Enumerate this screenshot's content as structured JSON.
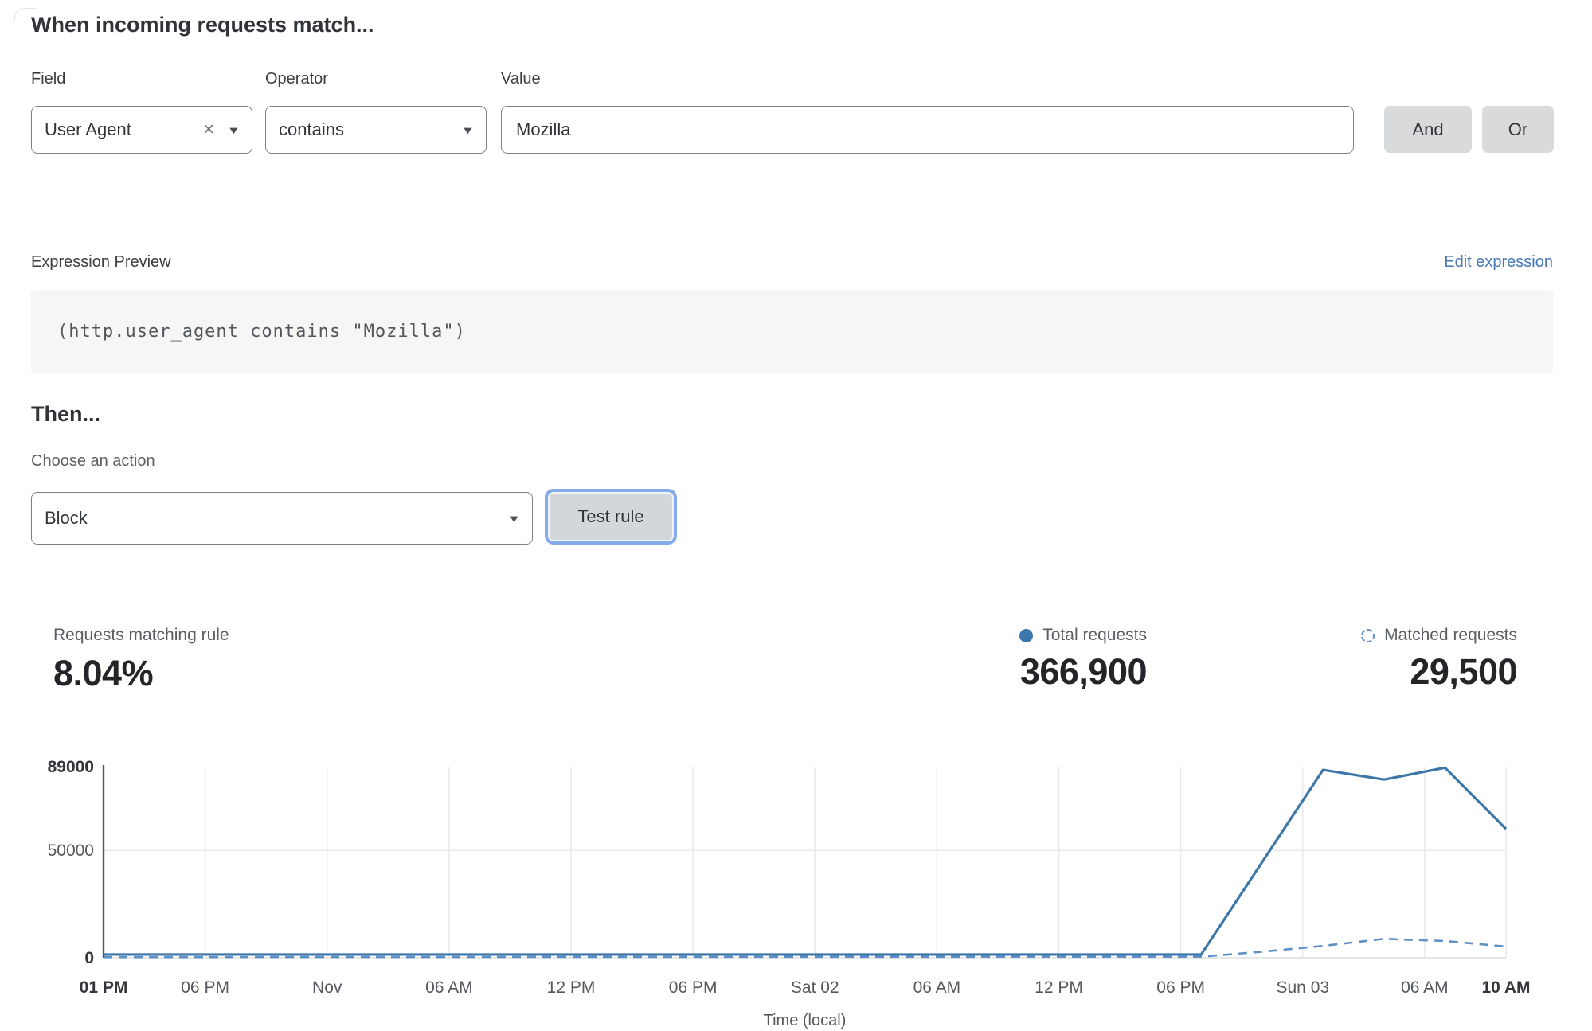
{
  "match_section": {
    "heading": "When incoming requests match...",
    "field": {
      "label": "Field",
      "value": "User Agent"
    },
    "operator": {
      "label": "Operator",
      "value": "contains"
    },
    "value": {
      "label": "Value",
      "value": "Mozilla"
    },
    "and_label": "And",
    "or_label": "Or"
  },
  "expression": {
    "label": "Expression Preview",
    "edit_link": "Edit expression",
    "code": "(http.user_agent contains \"Mozilla\")"
  },
  "then_section": {
    "heading": "Then...",
    "action_label": "Choose an action",
    "action_value": "Block",
    "test_button": "Test rule"
  },
  "stats": {
    "matching_label": "Requests matching rule",
    "matching_value": "8.04%",
    "total_label": "Total requests",
    "total_value": "366,900",
    "matched_label": "Matched requests",
    "matched_value": "29,500"
  },
  "colors": {
    "line_solid": "#3d76a9",
    "line_dashed": "#5e90c5",
    "grid": "#e9eaeb",
    "axis": "#55585c",
    "baseline": "#dedfe0",
    "tick_normal": "#54575b",
    "tick_bold": "#323539",
    "link_blue": "#4679b4"
  },
  "chart_data": {
    "type": "line",
    "title": "",
    "xlabel": "Time (local)",
    "ylabel": "",
    "ylim": [
      0,
      89000
    ],
    "grid": true,
    "legend_position": "top-right",
    "yticks": [
      {
        "value": 0,
        "label": "0",
        "bold": true
      },
      {
        "value": 50000,
        "label": "50000",
        "bold": false
      },
      {
        "value": 89000,
        "label": "89000",
        "bold": true
      }
    ],
    "xticks": [
      {
        "t": 0,
        "label": "01 PM",
        "bold": true
      },
      {
        "t": 5,
        "label": "06 PM",
        "bold": false
      },
      {
        "t": 11,
        "label": "Nov",
        "bold": false
      },
      {
        "t": 17,
        "label": "06 AM",
        "bold": false
      },
      {
        "t": 23,
        "label": "12 PM",
        "bold": false
      },
      {
        "t": 29,
        "label": "06 PM",
        "bold": false
      },
      {
        "t": 35,
        "label": "Sat 02",
        "bold": false
      },
      {
        "t": 41,
        "label": "06 AM",
        "bold": false
      },
      {
        "t": 47,
        "label": "12 PM",
        "bold": false
      },
      {
        "t": 53,
        "label": "06 PM",
        "bold": false
      },
      {
        "t": 59,
        "label": "Sun 03",
        "bold": false
      },
      {
        "t": 65,
        "label": "06 AM",
        "bold": false
      },
      {
        "t": 69,
        "label": "10 AM",
        "bold": true
      }
    ],
    "x_unit": "hours_from_start",
    "series": [
      {
        "name": "Total requests",
        "style": "solid",
        "points": [
          [
            0,
            1500
          ],
          [
            54,
            1500
          ],
          [
            60,
            87500
          ],
          [
            63,
            83000
          ],
          [
            66,
            88500
          ],
          [
            69,
            60000
          ]
        ]
      },
      {
        "name": "Matched requests",
        "style": "dashed",
        "points": [
          [
            0,
            300
          ],
          [
            54,
            500
          ],
          [
            57,
            2800
          ],
          [
            60,
            5500
          ],
          [
            63,
            8800
          ],
          [
            66,
            7800
          ],
          [
            69,
            5200
          ]
        ]
      }
    ]
  }
}
